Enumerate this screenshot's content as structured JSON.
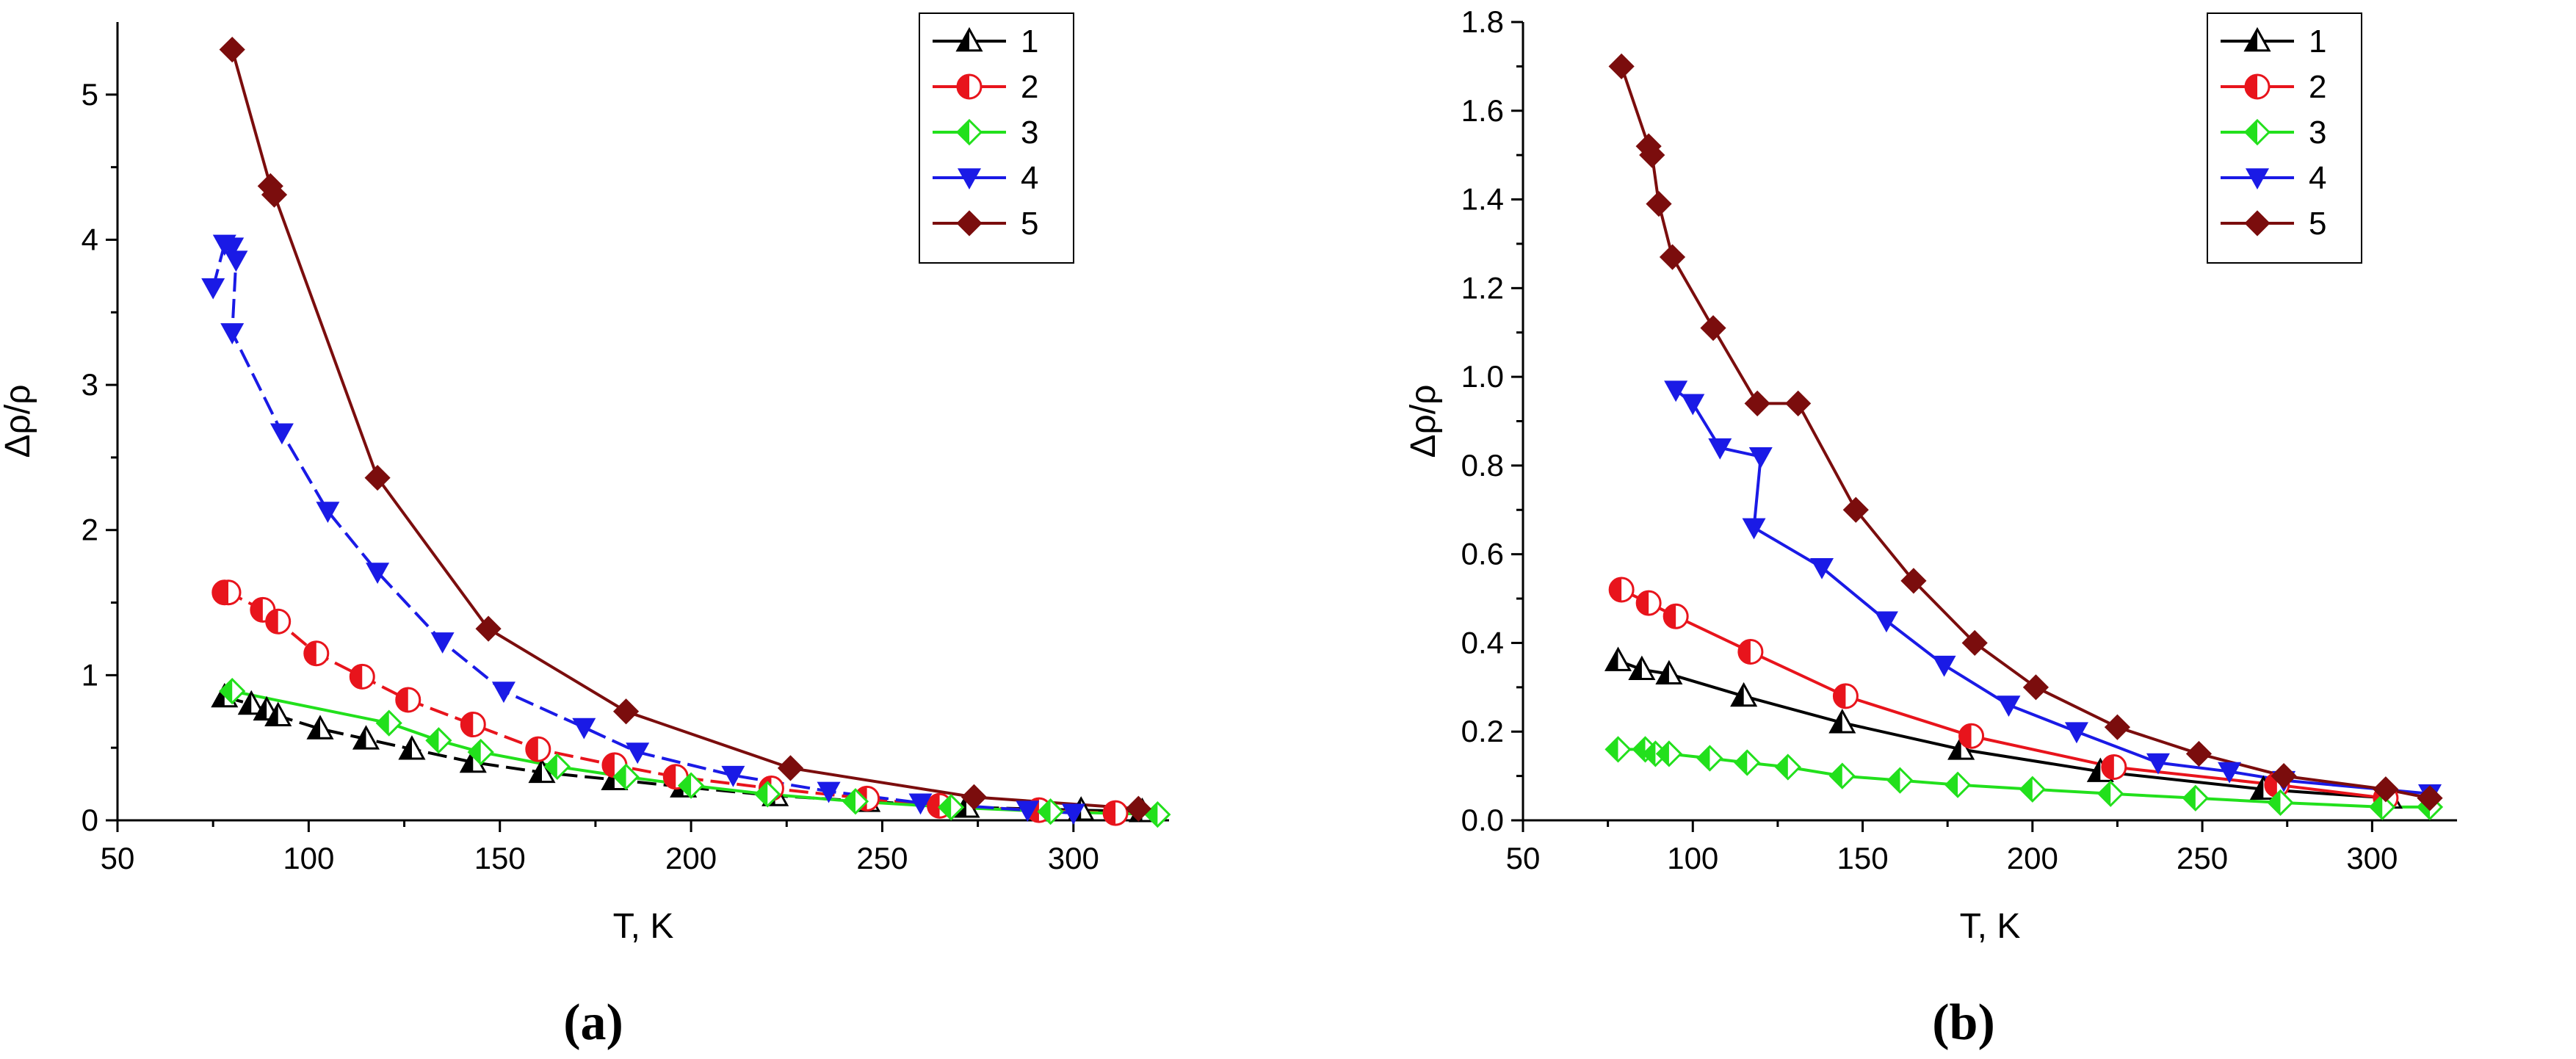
{
  "chart_data": [
    {
      "type": "line",
      "panel_label": "(a)",
      "title": "",
      "xlabel": "T, K",
      "ylabel": "Δρ/ρ",
      "xlim": [
        50,
        325
      ],
      "ylim": [
        0,
        5.5
      ],
      "xticks": [
        50,
        100,
        150,
        200,
        250,
        300
      ],
      "yticks": [
        0,
        1,
        2,
        3,
        4,
        5
      ],
      "legend_position": "top-right",
      "series": [
        {
          "name": "1",
          "color": "#000000",
          "marker": "triangle-half",
          "dash": "dashed",
          "x": [
            78,
            85,
            89,
            92,
            103,
            115,
            127,
            143,
            161,
            180,
            198,
            222,
            246,
            272,
            302,
            318
          ],
          "y": [
            0.85,
            0.8,
            0.76,
            0.72,
            0.63,
            0.56,
            0.49,
            0.4,
            0.33,
            0.28,
            0.23,
            0.17,
            0.13,
            0.09,
            0.07,
            0.06
          ]
        },
        {
          "name": "2",
          "color": "#e8141c",
          "marker": "circle-half",
          "dash": "dashed",
          "x": [
            78,
            79,
            88,
            92,
            102,
            114,
            126,
            143,
            160,
            180,
            196,
            221,
            246,
            265,
            291,
            311
          ],
          "y": [
            1.57,
            1.57,
            1.45,
            1.37,
            1.15,
            0.99,
            0.83,
            0.66,
            0.49,
            0.38,
            0.3,
            0.22,
            0.15,
            0.1,
            0.07,
            0.05
          ]
        },
        {
          "name": "3",
          "color": "#22e01c",
          "marker": "diamond-half",
          "dash": "solid",
          "x": [
            80,
            121,
            134,
            145,
            165,
            183,
            200,
            220,
            243,
            268,
            294,
            322
          ],
          "y": [
            0.89,
            0.67,
            0.55,
            0.47,
            0.37,
            0.3,
            0.24,
            0.18,
            0.13,
            0.09,
            0.06,
            0.04
          ]
        },
        {
          "name": "4",
          "color": "#1a1ae6",
          "marker": "triangle-down",
          "dash": "dashed",
          "x": [
            75,
            78,
            80,
            81,
            80,
            93,
            105,
            118,
            135,
            151,
            172,
            186,
            211,
            236,
            260,
            288,
            300
          ],
          "y": [
            3.67,
            3.97,
            3.95,
            3.86,
            3.36,
            2.67,
            2.13,
            1.71,
            1.23,
            0.89,
            0.64,
            0.47,
            0.31,
            0.2,
            0.12,
            0.07,
            0.05
          ]
        },
        {
          "name": "5",
          "color": "#7b0d0d",
          "marker": "diamond",
          "dash": "solid",
          "x": [
            80,
            90,
            91,
            118,
            147,
            183,
            226,
            274,
            317
          ],
          "y": [
            5.31,
            4.37,
            4.31,
            2.36,
            1.32,
            0.75,
            0.36,
            0.16,
            0.08
          ]
        }
      ]
    },
    {
      "type": "line",
      "panel_label": "(b)",
      "title": "",
      "xlabel": "T, K",
      "ylabel": "Δρ/ρ",
      "xlim": [
        50,
        325
      ],
      "ylim": [
        0,
        1.8
      ],
      "xticks": [
        50,
        100,
        150,
        200,
        250,
        300
      ],
      "yticks": [
        0.0,
        0.2,
        0.4,
        0.6,
        0.8,
        1.0,
        1.2,
        1.4,
        1.6,
        1.8
      ],
      "ytick_labels": [
        "0.0",
        "0.2",
        "0.4",
        "0.6",
        "0.8",
        "1.0",
        "1.2",
        "1.4",
        "1.6",
        "1.8"
      ],
      "legend_position": "top-right",
      "series": [
        {
          "name": "1",
          "color": "#000000",
          "marker": "triangle-half",
          "dash": "solid",
          "x": [
            78,
            85,
            93,
            115,
            144,
            179,
            220,
            268,
            305
          ],
          "y": [
            0.36,
            0.34,
            0.33,
            0.28,
            0.22,
            0.16,
            0.11,
            0.07,
            0.05
          ]
        },
        {
          "name": "2",
          "color": "#e8141c",
          "marker": "circle-half",
          "dash": "solid",
          "x": [
            79,
            87,
            95,
            117,
            145,
            182,
            224,
            272,
            304
          ],
          "y": [
            0.52,
            0.49,
            0.46,
            0.38,
            0.28,
            0.19,
            0.12,
            0.08,
            0.05
          ]
        },
        {
          "name": "3",
          "color": "#22e01c",
          "marker": "diamond-half",
          "dash": "solid",
          "x": [
            78,
            86,
            89,
            93,
            105,
            116,
            128,
            144,
            161,
            178,
            200,
            223,
            248,
            273,
            303,
            317
          ],
          "y": [
            0.16,
            0.16,
            0.15,
            0.15,
            0.14,
            0.13,
            0.12,
            0.1,
            0.09,
            0.08,
            0.07,
            0.06,
            0.05,
            0.04,
            0.03,
            0.03
          ]
        },
        {
          "name": "4",
          "color": "#1a1ae6",
          "marker": "triangle-down",
          "dash": "solid",
          "x": [
            95,
            100,
            108,
            120,
            118,
            138,
            157,
            174,
            193,
            213,
            237,
            258,
            274,
            317
          ],
          "y": [
            0.97,
            0.94,
            0.84,
            0.82,
            0.66,
            0.57,
            0.45,
            0.35,
            0.26,
            0.2,
            0.13,
            0.11,
            0.09,
            0.06
          ]
        },
        {
          "name": "5",
          "color": "#7b0d0d",
          "marker": "diamond",
          "dash": "solid",
          "x": [
            79,
            87,
            88,
            90,
            94,
            106,
            119,
            131,
            148,
            165,
            183,
            201,
            225,
            249,
            274,
            304,
            317
          ],
          "y": [
            1.7,
            1.52,
            1.5,
            1.39,
            1.27,
            1.11,
            0.94,
            0.94,
            0.7,
            0.54,
            0.4,
            0.3,
            0.21,
            0.15,
            0.1,
            0.07,
            0.05
          ]
        }
      ]
    }
  ]
}
